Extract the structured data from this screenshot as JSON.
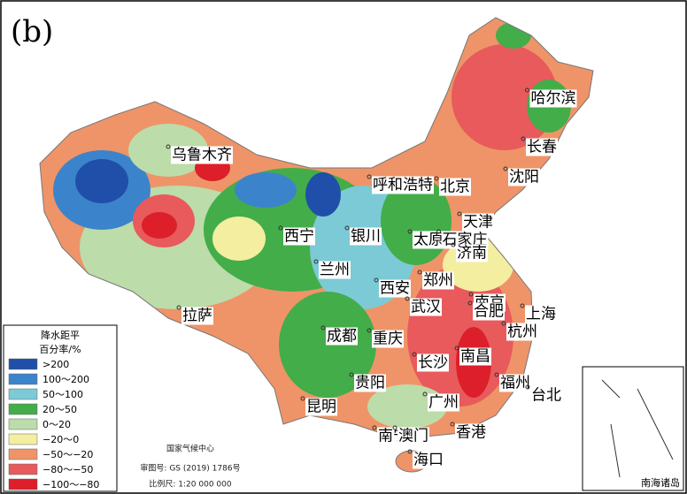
{
  "panel_label": "(b)",
  "cities": [
    "哈尔滨",
    "长春",
    "乌鲁木齐",
    "沈阳",
    "呼和浩特",
    "北京",
    "天津",
    "西宁",
    "银川",
    "太原",
    "石家庄",
    "济南",
    "兰州",
    "西安",
    "郑州",
    "南京",
    "合肥",
    "上海",
    "武汉",
    "杭州",
    "拉萨",
    "成都",
    "重庆",
    "南昌",
    "长沙",
    "贵阳",
    "福州",
    "台北",
    "昆明",
    "广州",
    "南宁",
    "澳门",
    "香港",
    "海口"
  ],
  "legend": {
    "title": [
      "降水距平",
      "百分率/%"
    ],
    "items": [
      {
        "label": ">200",
        "color": "#1f4fa8"
      },
      {
        "label": "100～200",
        "color": "#3b84cc"
      },
      {
        "label": "50～100",
        "color": "#7ccad6"
      },
      {
        "label": "20～50",
        "color": "#43ad4a"
      },
      {
        "label": "0～20",
        "color": "#bcdcaa"
      },
      {
        "label": "−20～0",
        "color": "#f4eea0"
      },
      {
        "label": "−50～−20",
        "color": "#ef9468"
      },
      {
        "label": "−80～−50",
        "color": "#e85a5c"
      },
      {
        "label": "−100～−80",
        "color": "#dc1f2a"
      }
    ]
  },
  "footer": [
    "国家气候中心",
    "审图号: GS (2019) 1786号",
    "比例尺: 1:20 000 000"
  ],
  "inset_label": "南海诸岛"
}
